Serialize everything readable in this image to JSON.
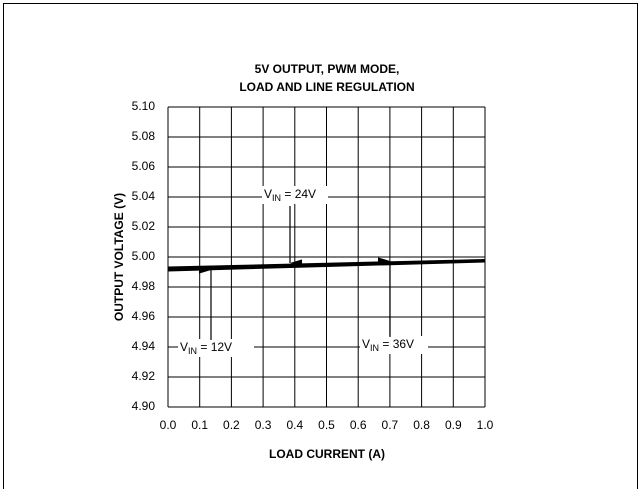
{
  "chart_data": {
    "type": "line",
    "title": [
      "5V OUTPUT, PWM MODE,",
      "LOAD AND LINE REGULATION"
    ],
    "x_label": "LOAD CURRENT (A)",
    "y_label": "OUTPUT VOLTAGE (V)",
    "x": [
      0,
      0.5,
      1.0
    ],
    "series": [
      {
        "color": "#000000",
        "values": [
          4.991,
          4.994,
          4.997
        ]
      },
      {
        "color": "#000000",
        "values": [
          4.992,
          4.995,
          4.9975
        ]
      },
      {
        "color": "#000000",
        "values": [
          4.993,
          4.9955,
          4.998
        ]
      }
    ],
    "annotations": [
      {
        "text": "V",
        "subscript": "IN",
        "suffix": " = 12V"
      },
      {
        "text": "V",
        "subscript": "IN",
        "suffix": " = 24V"
      },
      {
        "text": "V",
        "subscript": "IN",
        "suffix": " = 36V"
      }
    ],
    "xlim": [
      0,
      1.0
    ],
    "xticks": [
      {
        "value": 0,
        "label": "0.0"
      },
      0.1,
      0.2,
      0.3,
      0.4,
      0.5,
      0.6,
      0.7,
      0.8,
      0.9,
      {
        "value": 1,
        "label": "1.0"
      }
    ],
    "ylim": [
      4.9,
      5.1
    ],
    "yticks": [
      {
        "value": 4.9,
        "label": "4.90"
      },
      4.92,
      4.94,
      4.96,
      4.98,
      {
        "value": 5.0,
        "label": "5.00"
      },
      5.02,
      5.04,
      5.06,
      5.08,
      {
        "value": 5.1,
        "label": "5.10"
      }
    ],
    "grid": true
  }
}
